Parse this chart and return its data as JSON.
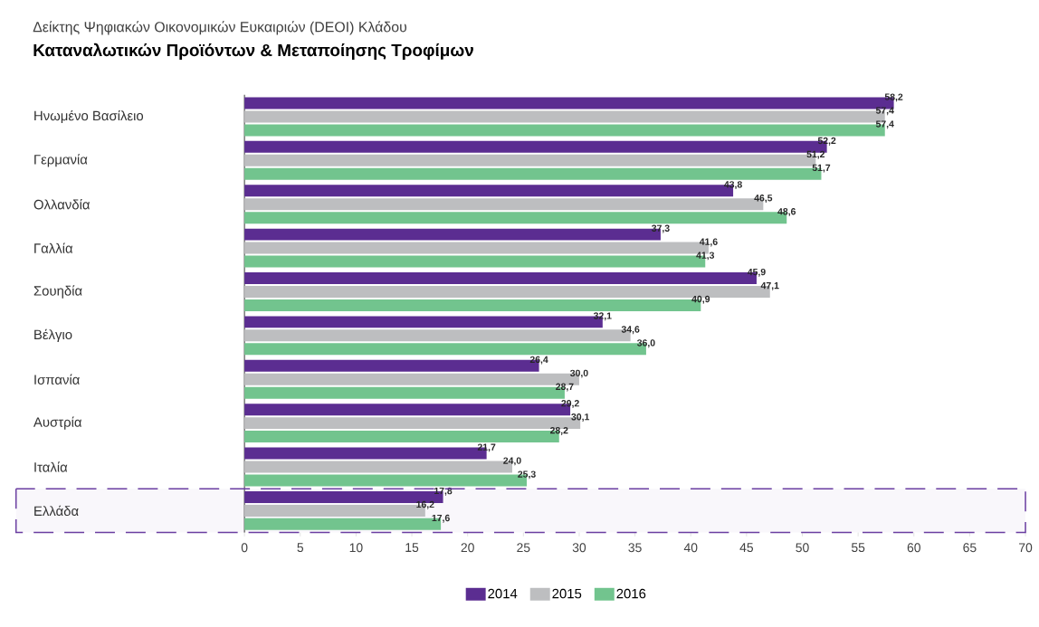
{
  "chart_data": {
    "type": "bar",
    "orientation": "horizontal",
    "title": "Δείκτης Ψηφιακών Οικονομικών Ευκαιριών (DEOI) Κλάδου",
    "subtitle": "Καταναλωτικών Προϊόντων & Μεταποίησης Τροφίμων",
    "categories": [
      "Ηνωμένο Βασίλειο",
      "Γερμανία",
      "Ολλανδία",
      "Γαλλία",
      "Σουηδία",
      "Βέλγιο",
      "Ισπανία",
      "Αυστρία",
      "Ιταλία",
      "Ελλάδα"
    ],
    "series": [
      {
        "name": "2014",
        "color": "#5b2d91",
        "values": [
          58.2,
          52.2,
          43.8,
          37.3,
          45.9,
          32.1,
          26.4,
          29.2,
          21.7,
          17.8
        ],
        "value_labels": [
          "58,2",
          "52,2",
          "43,8",
          "37,3",
          "45,9",
          "32,1",
          "26,4",
          "29,2",
          "21,7",
          "17,8"
        ]
      },
      {
        "name": "2015",
        "color": "#bdbec0",
        "values": [
          57.4,
          51.2,
          46.5,
          41.6,
          47.1,
          34.6,
          30.0,
          30.1,
          24.0,
          16.2
        ],
        "value_labels": [
          "57,4",
          "51,2",
          "46,5",
          "41,6",
          "47,1",
          "34,6",
          "30,0",
          "30,1",
          "24,0",
          "16,2"
        ]
      },
      {
        "name": "2016",
        "color": "#72c48e",
        "values": [
          57.4,
          51.7,
          48.6,
          41.3,
          40.9,
          36.0,
          28.7,
          28.2,
          25.3,
          17.6
        ],
        "value_labels": [
          "57,4",
          "51,7",
          "48,6",
          "41,3",
          "40,9",
          "36,0",
          "28,7",
          "28,2",
          "25,3",
          "17,6"
        ]
      }
    ],
    "xlim": [
      0,
      70
    ],
    "xticks": [
      0,
      5,
      10,
      15,
      20,
      25,
      30,
      35,
      40,
      45,
      50,
      55,
      60,
      65,
      70
    ],
    "grid": false,
    "legend": "bottom",
    "bands": [
      {
        "axis": "y",
        "from": "Ελλάδα",
        "to": "Ελλάδα"
      }
    ]
  }
}
